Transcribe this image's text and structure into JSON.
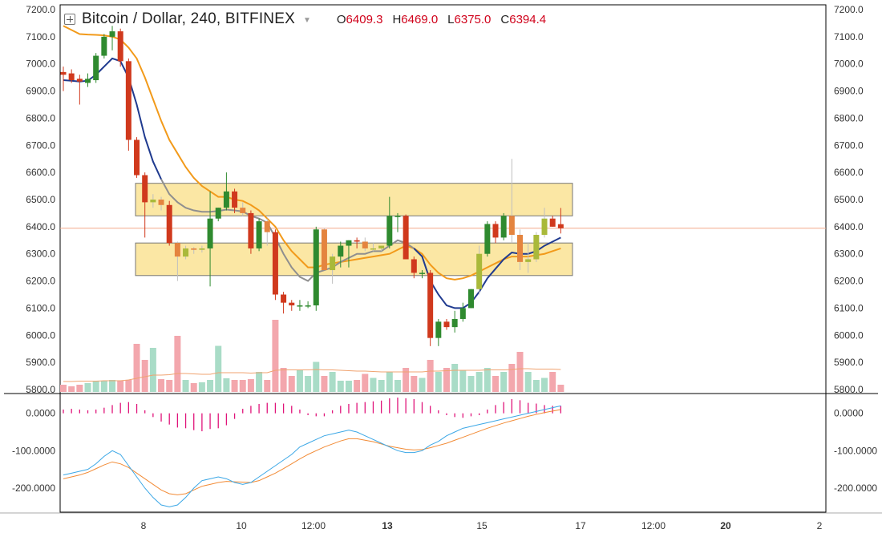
{
  "legend": {
    "symbol": "Bitcoin / Dollar, 240, BITFINEX",
    "open_label": "O",
    "open": "6409.3",
    "high_label": "H",
    "high": "6469.0",
    "low_label": "L",
    "low": "6375.0",
    "close_label": "C",
    "close": "6394.4"
  },
  "colors": {
    "up": "#2f8a2f",
    "up_light": "#a9b93a",
    "down": "#d0391d",
    "down_light": "#e4843f",
    "zone_fill": "#fbe7a4",
    "zone_stroke": "#777777",
    "ema_fast": "#1f3a8f",
    "ema_slow": "#f29a1a",
    "ema_faded": "#8f8f8f",
    "vol_up": "#a9dcc7",
    "vol_down": "#f3a7ad",
    "vol_ma": "#f0a370",
    "macd_hist": "#e0147a",
    "macd_line": "#3ba7e6",
    "signal_line": "#f28b36",
    "price_line": "#f2a88a"
  },
  "chart_data": [
    {
      "type": "candlestick",
      "title": "Bitcoin / Dollar, 240, BITFINEX",
      "x_ticks": [
        "8",
        "10",
        "12:00",
        "13",
        "15",
        "17",
        "12:00",
        "20",
        "2"
      ],
      "x_ticks_bold": [
        "13",
        "20"
      ],
      "y_ticks": [
        "7200.0",
        "7100.0",
        "7000.0",
        "6900.0",
        "6800.0",
        "6700.0",
        "6600.0",
        "6500.0",
        "6400.0",
        "6300.0",
        "6200.0",
        "6100.0",
        "6000.0",
        "5900.0",
        "5800.0"
      ],
      "ylim": [
        5800,
        7200
      ],
      "current_price": 6394.4,
      "candles_ohlc": [
        [
          6970,
          6990,
          6900,
          6960
        ],
        [
          6965,
          6980,
          6930,
          6940
        ],
        [
          6945,
          6960,
          6850,
          6935
        ],
        [
          6930,
          6965,
          6915,
          6945
        ],
        [
          6940,
          7040,
          6930,
          7030
        ],
        [
          7030,
          7110,
          7020,
          7100
        ],
        [
          7100,
          7140,
          7050,
          7120
        ],
        [
          7120,
          7130,
          6990,
          7010
        ],
        [
          7010,
          7020,
          6680,
          6720
        ],
        [
          6720,
          6730,
          6580,
          6590
        ],
        [
          6590,
          6600,
          6360,
          6490
        ],
        [
          6490,
          6520,
          6470,
          6500
        ],
        [
          6500,
          6510,
          6460,
          6480
        ],
        [
          6480,
          6495,
          6330,
          6340
        ],
        [
          6340,
          6345,
          6200,
          6290
        ],
        [
          6290,
          6330,
          6280,
          6320
        ],
        [
          6320,
          6325,
          6300,
          6315
        ],
        [
          6315,
          6330,
          6305,
          6320
        ],
        [
          6320,
          6530,
          6180,
          6430
        ],
        [
          6430,
          6470,
          6420,
          6470
        ],
        [
          6470,
          6600,
          6460,
          6530
        ],
        [
          6530,
          6540,
          6450,
          6470
        ],
        [
          6470,
          6490,
          6440,
          6450
        ],
        [
          6450,
          6460,
          6300,
          6320
        ],
        [
          6320,
          6430,
          6310,
          6420
        ],
        [
          6420,
          6430,
          6330,
          6380
        ],
        [
          6380,
          6390,
          6130,
          6150
        ],
        [
          6150,
          6160,
          6080,
          6120
        ],
        [
          6120,
          6130,
          6090,
          6110
        ],
        [
          6110,
          6130,
          6090,
          6110
        ],
        [
          6110,
          6125,
          6100,
          6110
        ],
        [
          6110,
          6400,
          6090,
          6390
        ],
        [
          6390,
          6395,
          6240,
          6240
        ],
        [
          6240,
          6300,
          6190,
          6290
        ],
        [
          6290,
          6345,
          6250,
          6330
        ],
        [
          6330,
          6350,
          6250,
          6350
        ],
        [
          6350,
          6360,
          6320,
          6345
        ],
        [
          6345,
          6360,
          6310,
          6320
        ],
        [
          6320,
          6340,
          6310,
          6320
        ],
        [
          6320,
          6330,
          6310,
          6330
        ],
        [
          6330,
          6510,
          6320,
          6440
        ],
        [
          6440,
          6450,
          6380,
          6440
        ],
        [
          6440,
          6445,
          6280,
          6280
        ],
        [
          6280,
          6290,
          6210,
          6230
        ],
        [
          6230,
          6240,
          6210,
          6230
        ],
        [
          6230,
          6240,
          5960,
          5990
        ],
        [
          5990,
          6060,
          5960,
          6050
        ],
        [
          6050,
          6060,
          6020,
          6030
        ],
        [
          6030,
          6090,
          6010,
          6060
        ],
        [
          6060,
          6120,
          6050,
          6100
        ],
        [
          6100,
          6170,
          6100,
          6170
        ],
        [
          6170,
          6330,
          6150,
          6300
        ],
        [
          6300,
          6420,
          6290,
          6410
        ],
        [
          6410,
          6420,
          6340,
          6360
        ],
        [
          6360,
          6450,
          6350,
          6440
        ],
        [
          6440,
          6650,
          6340,
          6370
        ],
        [
          6370,
          6390,
          6240,
          6270
        ],
        [
          6270,
          6340,
          6230,
          6280
        ],
        [
          6280,
          6380,
          6270,
          6370
        ],
        [
          6370,
          6470,
          6360,
          6430
        ],
        [
          6430,
          6440,
          6400,
          6400
        ],
        [
          6409.3,
          6469.0,
          6375.0,
          6394.4
        ]
      ],
      "light_candles": [
        11,
        12,
        14,
        15,
        16,
        17,
        22,
        25,
        32,
        33,
        37,
        38,
        39,
        51,
        55,
        56,
        57,
        58,
        59
      ],
      "ema_fast": [
        6940,
        6938,
        6935,
        6938,
        6960,
        6990,
        7020,
        7010,
        6950,
        6850,
        6730,
        6640,
        6575,
        6520,
        6490,
        6470,
        6460,
        6455,
        6455,
        6458,
        6463,
        6460,
        6456,
        6440,
        6430,
        6415,
        6360,
        6300,
        6250,
        6215,
        6200,
        6230,
        6240,
        6250,
        6270,
        6285,
        6300,
        6300,
        6310,
        6310,
        6330,
        6350,
        6340,
        6320,
        6290,
        6200,
        6150,
        6110,
        6100,
        6100,
        6120,
        6160,
        6210,
        6245,
        6280,
        6305,
        6300,
        6300,
        6310,
        6330,
        6345,
        6360
      ],
      "ema_slow": [
        7140,
        7125,
        7110,
        7108,
        7107,
        7105,
        7100,
        7090,
        7060,
        7020,
        6950,
        6870,
        6790,
        6720,
        6670,
        6620,
        6580,
        6550,
        6530,
        6510,
        6510,
        6500,
        6495,
        6480,
        6460,
        6430,
        6400,
        6350,
        6310,
        6280,
        6250,
        6250,
        6260,
        6265,
        6270,
        6275,
        6280,
        6285,
        6290,
        6295,
        6300,
        6315,
        6330,
        6320,
        6300,
        6260,
        6230,
        6210,
        6205,
        6210,
        6220,
        6235,
        6250,
        6265,
        6280,
        6290,
        6290,
        6290,
        6295,
        6300,
        6310,
        6320
      ],
      "faded_ema_range": [
        12,
        43
      ],
      "volume_ylim": [
        0,
        260
      ],
      "volume": [
        18,
        14,
        18,
        22,
        28,
        28,
        30,
        28,
        30,
        120,
        80,
        110,
        32,
        30,
        140,
        30,
        22,
        24,
        30,
        115,
        34,
        30,
        30,
        32,
        50,
        30,
        180,
        60,
        40,
        55,
        40,
        75,
        40,
        50,
        28,
        28,
        30,
        45,
        35,
        30,
        50,
        30,
        60,
        40,
        35,
        80,
        50,
        60,
        70,
        55,
        40,
        50,
        60,
        40,
        50,
        70,
        100,
        50,
        30,
        35,
        50,
        18
      ],
      "volume_ma": [
        26,
        26,
        27,
        27,
        27,
        28,
        28,
        28,
        30,
        34,
        38,
        42,
        42,
        43,
        46,
        46,
        45,
        44,
        44,
        48,
        48,
        48,
        48,
        47,
        48,
        48,
        54,
        55,
        55,
        55,
        55,
        56,
        55,
        55,
        54,
        53,
        52,
        52,
        51,
        50,
        50,
        50,
        50,
        50,
        50,
        52,
        52,
        53,
        54,
        54,
        54,
        54,
        55,
        55,
        55,
        56,
        58,
        58,
        57,
        57,
        57,
        56
      ]
    },
    {
      "type": "macd",
      "y_ticks": [
        "0.0000",
        "-100.0000",
        "-200.0000"
      ],
      "ylim": [
        -260,
        40
      ],
      "histogram": [
        10,
        12,
        10,
        8,
        10,
        15,
        22,
        28,
        30,
        25,
        8,
        -10,
        -22,
        -30,
        -38,
        -40,
        -45,
        -48,
        -42,
        -40,
        -32,
        -15,
        12,
        20,
        25,
        28,
        28,
        26,
        20,
        10,
        -5,
        -8,
        -8,
        8,
        20,
        25,
        28,
        30,
        32,
        34,
        40,
        42,
        40,
        38,
        30,
        20,
        8,
        -5,
        -10,
        -12,
        -8,
        -5,
        10,
        22,
        30,
        38,
        35,
        28,
        26,
        22,
        20,
        20
      ],
      "macd_line": [
        -165,
        -160,
        -155,
        -150,
        -135,
        -115,
        -100,
        -110,
        -140,
        -170,
        -200,
        -225,
        -245,
        -250,
        -245,
        -225,
        -200,
        -180,
        -175,
        -170,
        -175,
        -185,
        -190,
        -185,
        -170,
        -155,
        -140,
        -125,
        -110,
        -90,
        -80,
        -70,
        -60,
        -55,
        -50,
        -45,
        -50,
        -60,
        -70,
        -80,
        -90,
        -100,
        -105,
        -105,
        -100,
        -85,
        -75,
        -60,
        -50,
        -40,
        -35,
        -30,
        -25,
        -20,
        -15,
        -10,
        -5,
        0,
        5,
        10,
        15,
        20
      ],
      "signal_line": [
        -175,
        -170,
        -165,
        -158,
        -148,
        -138,
        -130,
        -135,
        -145,
        -160,
        -175,
        -190,
        -205,
        -215,
        -218,
        -215,
        -205,
        -195,
        -190,
        -185,
        -182,
        -183,
        -184,
        -185,
        -180,
        -170,
        -160,
        -148,
        -135,
        -122,
        -110,
        -100,
        -90,
        -82,
        -74,
        -68,
        -68,
        -72,
        -76,
        -82,
        -88,
        -92,
        -96,
        -98,
        -97,
        -92,
        -86,
        -80,
        -72,
        -64,
        -56,
        -48,
        -40,
        -33,
        -26,
        -20,
        -14,
        -8,
        -3,
        2,
        6,
        10
      ]
    }
  ]
}
